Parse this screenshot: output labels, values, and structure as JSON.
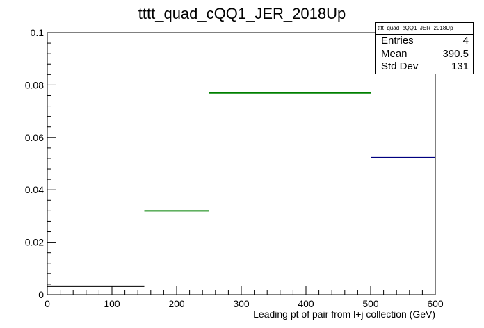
{
  "chart_data": {
    "type": "histogram",
    "title": "tttt_quad_cQQ1_JER_2018Up",
    "xlabel": "Leading pt of pair from l+j collection (GeV)",
    "ylabel": "",
    "xlim": [
      0,
      600
    ],
    "ylim": [
      0,
      0.1
    ],
    "x_ticks": [
      "0",
      "100",
      "200",
      "300",
      "400",
      "500",
      "600"
    ],
    "y_ticks": [
      "0",
      "0.02",
      "0.04",
      "0.06",
      "0.08",
      "0.1"
    ],
    "bins": [
      {
        "x_low": 0,
        "x_high": 150,
        "value": 0.0032,
        "color": "#000000"
      },
      {
        "x_low": 150,
        "x_high": 250,
        "value": 0.032,
        "color": "#008000"
      },
      {
        "x_low": 250,
        "x_high": 500,
        "value": 0.077,
        "color": "#008000"
      },
      {
        "x_low": 500,
        "x_high": 600,
        "value": 0.0523,
        "color": "#000080"
      }
    ],
    "grid": false,
    "legend": "none"
  },
  "stats": {
    "title": "tttt_quad_cQQ1_JER_2018Up",
    "rows": [
      {
        "label": "Entries",
        "value": "4"
      },
      {
        "label": "Mean",
        "value": "390.5"
      },
      {
        "label": "Std Dev",
        "value": "131"
      }
    ]
  }
}
